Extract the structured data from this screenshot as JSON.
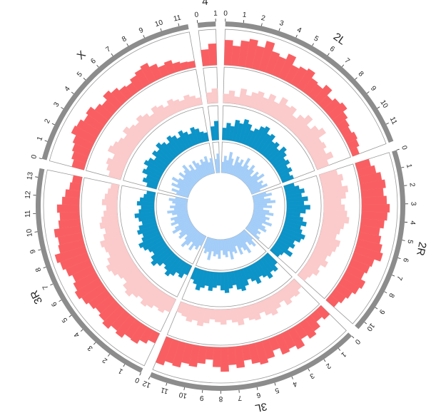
{
  "chart_data": {
    "type": "circos-histogram",
    "chromosomes": [
      {
        "name": "2L",
        "length": 12,
        "ticks": [
          0,
          1,
          2,
          3,
          4,
          5,
          6,
          7,
          8,
          9,
          10,
          11
        ]
      },
      {
        "name": "2R",
        "length": 10.5,
        "ticks": [
          0,
          1,
          2,
          3,
          4,
          5,
          6,
          7,
          8,
          9,
          10
        ]
      },
      {
        "name": "3L",
        "length": 12,
        "ticks": [
          0,
          1,
          2,
          3,
          4,
          5,
          6,
          7,
          8,
          9,
          10,
          11,
          12
        ]
      },
      {
        "name": "3R",
        "length": 13.5,
        "ticks": [
          0,
          1,
          2,
          3,
          4,
          5,
          6,
          7,
          8,
          9,
          10,
          11,
          12,
          13
        ]
      },
      {
        "name": "X",
        "length": 11.5,
        "ticks": [
          0,
          1,
          2,
          3,
          4,
          5,
          6,
          7,
          8,
          9,
          10,
          11
        ]
      },
      {
        "name": "4",
        "length": 1,
        "ticks": [
          0,
          1
        ]
      }
    ],
    "tracks": [
      {
        "name": "track1",
        "color": "#f95f62",
        "values": {
          "2L": [
            0.7,
            0.55,
            0.72,
            0.8,
            0.65,
            0.85,
            0.62,
            0.55,
            0.72,
            0.48,
            0.55,
            0.62,
            0.45,
            0.4,
            0.55,
            0.35,
            0.45,
            0.52,
            0.38,
            0.3,
            0.25,
            0.32,
            0.28,
            0.2
          ],
          "2R": [
            0.4,
            0.5,
            0.62,
            0.7,
            0.62,
            0.7,
            0.78,
            0.72,
            0.65,
            0.55,
            0.62,
            0.7,
            0.78,
            0.6,
            0.55,
            0.48,
            0.62,
            0.55,
            0.45,
            0.38,
            0.3
          ],
          "3L": [
            0.35,
            0.25,
            0.42,
            0.52,
            0.4,
            0.6,
            0.48,
            0.55,
            0.35,
            0.52,
            0.62,
            0.55,
            0.42,
            0.6,
            0.5,
            0.68,
            0.55,
            0.35,
            0.48,
            0.6,
            0.55,
            0.7,
            0.65,
            0.78
          ],
          "3R": [
            0.3,
            0.42,
            0.55,
            0.52,
            0.65,
            0.58,
            0.7,
            0.62,
            0.55,
            0.62,
            0.7,
            0.78,
            0.7,
            0.62,
            0.72,
            0.8,
            0.88,
            0.72,
            0.68,
            0.75,
            0.6,
            0.55,
            0.62,
            0.48,
            0.4,
            0.3,
            0.25
          ],
          "X": [
            0.35,
            0.42,
            0.48,
            0.55,
            0.7,
            0.65,
            0.55,
            0.62,
            0.48,
            0.4,
            0.55,
            0.45,
            0.35,
            0.3,
            0.4,
            0.48,
            0.55,
            0.42,
            0.3,
            0.36,
            0.25,
            0.2,
            0.18
          ],
          "4": [
            0.45,
            0.6
          ]
        }
      },
      {
        "name": "track2",
        "color": "#fbcaca",
        "values": {
          "2L": [
            0.25,
            0.35,
            0.2,
            0.45,
            0.3,
            0.42,
            0.5,
            0.38,
            0.55,
            0.4,
            0.62,
            0.48,
            0.55,
            0.35,
            0.5,
            0.65,
            0.42,
            0.58,
            0.7,
            0.45,
            0.5,
            0.4,
            0.55,
            0.35
          ],
          "2R": [
            0.5,
            0.62,
            0.55,
            0.7,
            0.62,
            0.48,
            0.58,
            0.65,
            0.72,
            0.6,
            0.52,
            0.45,
            0.6,
            0.55,
            0.48,
            0.4,
            0.5,
            0.35,
            0.42,
            0.3,
            0.25
          ],
          "3L": [
            0.3,
            0.4,
            0.35,
            0.45,
            0.28,
            0.38,
            0.5,
            0.42,
            0.3,
            0.45,
            0.4,
            0.32,
            0.48,
            0.38,
            0.3,
            0.42,
            0.35,
            0.28,
            0.4,
            0.5,
            0.38,
            0.45,
            0.35,
            0.3
          ],
          "3R": [
            0.4,
            0.5,
            0.45,
            0.55,
            0.62,
            0.5,
            0.58,
            0.7,
            0.62,
            0.48,
            0.55,
            0.65,
            0.72,
            0.6,
            0.5,
            0.55,
            0.62,
            0.48,
            0.4,
            0.52,
            0.45,
            0.38,
            0.3,
            0.42,
            0.35,
            0.28,
            0.22
          ],
          "X": [
            0.35,
            0.45,
            0.52,
            0.4,
            0.62,
            0.55,
            0.48,
            0.4,
            0.55,
            0.45,
            0.38,
            0.5,
            0.42,
            0.3,
            0.45,
            0.38,
            0.28,
            0.4,
            0.32,
            0.25,
            0.35,
            0.28,
            0.2
          ],
          "4": [
            0.3,
            0.4
          ]
        }
      },
      {
        "name": "track3",
        "color": "#0c93c8",
        "values": {
          "2L": [
            0.35,
            0.5,
            0.42,
            0.62,
            0.55,
            0.7,
            0.6,
            0.45,
            0.55,
            0.68,
            0.75,
            0.58,
            0.65,
            0.48,
            0.55,
            0.42,
            0.6,
            0.5,
            0.38,
            0.45,
            0.32,
            0.4,
            0.28,
            0.35
          ],
          "2R": [
            0.3,
            0.42,
            0.55,
            0.45,
            0.62,
            0.5,
            0.68,
            0.55,
            0.4,
            0.5,
            0.62,
            0.48,
            0.55,
            0.68,
            0.6,
            0.45,
            0.52,
            0.4,
            0.58,
            0.35,
            0.3
          ],
          "3L": [
            0.4,
            0.55,
            0.48,
            0.62,
            0.5,
            0.42,
            0.58,
            0.45,
            0.35,
            0.5,
            0.62,
            0.55,
            0.4,
            0.48,
            0.6,
            0.52,
            0.38,
            0.45,
            0.55,
            0.42,
            0.5,
            0.6,
            0.45,
            0.35
          ],
          "3R": [
            0.3,
            0.45,
            0.38,
            0.52,
            0.62,
            0.5,
            0.42,
            0.55,
            0.68,
            0.58,
            0.45,
            0.52,
            0.62,
            0.7,
            0.55,
            0.48,
            0.6,
            0.52,
            0.4,
            0.48,
            0.58,
            0.45,
            0.38,
            0.5,
            0.42,
            0.32,
            0.25
          ],
          "X": [
            0.3,
            0.45,
            0.38,
            0.55,
            0.48,
            0.62,
            0.55,
            0.42,
            0.58,
            0.5,
            0.65,
            0.55,
            0.45,
            0.6,
            0.52,
            0.4,
            0.55,
            0.45,
            0.35,
            0.5,
            0.42,
            0.3,
            0.25
          ],
          "4": [
            0.4,
            0.55
          ]
        }
      },
      {
        "name": "track4",
        "color": "#a3cdf8",
        "values": {
          "2L": [
            0.35,
            0.55,
            0.42,
            0.7,
            0.5,
            0.3,
            0.62,
            0.45,
            0.58,
            0.38,
            0.72,
            0.5,
            0.4,
            0.62,
            0.48,
            0.3,
            0.55,
            0.45,
            0.65,
            0.35,
            0.5,
            0.42,
            0.58,
            0.3
          ],
          "2R": [
            0.45,
            0.62,
            0.35,
            0.55,
            0.7,
            0.42,
            0.58,
            0.3,
            0.5,
            0.65,
            0.4,
            0.55,
            0.45,
            0.68,
            0.38,
            0.52,
            0.6,
            0.35,
            0.48,
            0.4,
            0.55
          ],
          "3L": [
            0.4,
            0.62,
            0.5,
            0.35,
            0.7,
            0.55,
            0.42,
            0.62,
            0.3,
            0.52,
            0.45,
            0.68,
            0.4,
            0.58,
            0.5,
            0.35,
            0.62,
            0.48,
            0.55,
            0.4,
            0.7,
            0.45,
            0.52,
            0.38
          ],
          "3R": [
            0.35,
            0.52,
            0.45,
            0.65,
            0.4,
            0.58,
            0.72,
            0.48,
            0.35,
            0.6,
            0.52,
            0.42,
            0.68,
            0.55,
            0.4,
            0.62,
            0.48,
            0.58,
            0.35,
            0.5,
            0.65,
            0.42,
            0.55,
            0.38,
            0.48,
            0.6,
            0.4
          ],
          "X": [
            0.4,
            0.58,
            0.35,
            0.65,
            0.48,
            0.72,
            0.52,
            0.4,
            0.62,
            0.45,
            0.55,
            0.7,
            0.42,
            0.58,
            0.35,
            0.62,
            0.5,
            0.4,
            0.55,
            0.45,
            0.6,
            0.38,
            0.5
          ],
          "4": [
            0.45,
            0.62
          ]
        }
      }
    ],
    "ideogram_color": "#8c8c8c"
  }
}
